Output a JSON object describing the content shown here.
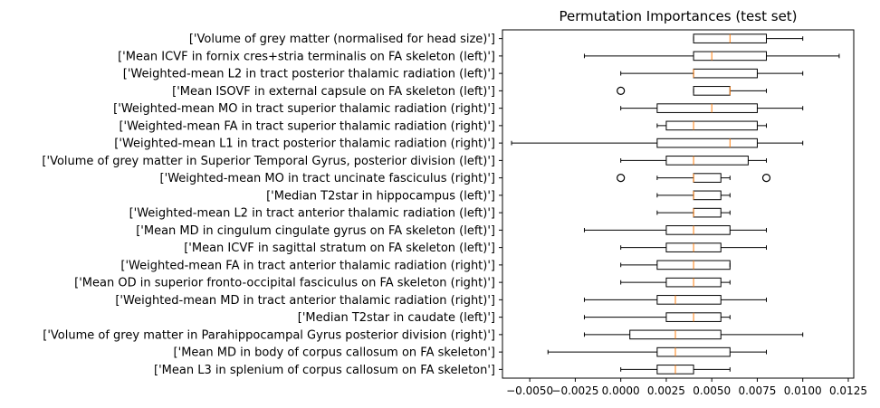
{
  "chart_data": {
    "type": "boxplot",
    "orientation": "horizontal",
    "title": "Permutation Importances (test set)",
    "xlim": [
      -0.0065,
      0.0128
    ],
    "xticks": [
      -0.005,
      -0.0025,
      0.0,
      0.0025,
      0.005,
      0.0075,
      0.01,
      0.0125
    ],
    "xtick_labels": [
      "−0.0050",
      "−0.0025",
      "0.0000",
      "0.0025",
      "0.0050",
      "0.0075",
      "0.0100",
      "0.0125"
    ],
    "categories": [
      "['Volume of grey matter (normalised for head size)']",
      "['Mean ICVF in fornix cres+stria terminalis on FA skeleton (left)']",
      "['Weighted-mean L2 in tract posterior thalamic radiation (left)']",
      "['Mean ISOVF in external capsule on FA skeleton (left)']",
      "['Weighted-mean MO in tract superior thalamic radiation (right)']",
      "['Weighted-mean FA in tract superior thalamic radiation (right)']",
      "['Weighted-mean L1 in tract posterior thalamic radiation (right)']",
      "['Volume of grey matter in Superior Temporal Gyrus, posterior division (left)']",
      "['Weighted-mean MO in tract uncinate fasciculus (right)']",
      "['Median T2star in hippocampus (left)']",
      "['Weighted-mean L2 in tract anterior thalamic radiation (left)']",
      "['Mean MD in cingulum cingulate gyrus on FA skeleton (left)']",
      "['Mean ICVF in sagittal stratum on FA skeleton (left)']",
      "['Weighted-mean FA in tract anterior thalamic radiation (right)']",
      "['Mean OD in superior fronto-occipital fasciculus on FA skeleton (right)']",
      "['Weighted-mean MD in tract anterior thalamic radiation (right)']",
      "['Median T2star in caudate (left)']",
      "['Volume of grey matter in Parahippocampal Gyrus posterior division (right)']",
      "['Mean MD in body of corpus callosum on FA skeleton']",
      "['Mean L3 in splenium of corpus callosum on FA skeleton']"
    ],
    "boxes": [
      {
        "whislo": 0.004,
        "q1": 0.004,
        "med": 0.006,
        "q3": 0.008,
        "whishi": 0.01,
        "fliers": []
      },
      {
        "whislo": -0.002,
        "q1": 0.004,
        "med": 0.005,
        "q3": 0.008,
        "whishi": 0.012,
        "fliers": []
      },
      {
        "whislo": 0.0,
        "q1": 0.004,
        "med": 0.004,
        "q3": 0.0075,
        "whishi": 0.01,
        "fliers": []
      },
      {
        "whislo": 0.004,
        "q1": 0.004,
        "med": 0.006,
        "q3": 0.006,
        "whishi": 0.008,
        "fliers": [
          0.0
        ]
      },
      {
        "whislo": 0.0,
        "q1": 0.002,
        "med": 0.005,
        "q3": 0.0075,
        "whishi": 0.01,
        "fliers": []
      },
      {
        "whislo": 0.002,
        "q1": 0.0025,
        "med": 0.004,
        "q3": 0.0075,
        "whishi": 0.008,
        "fliers": []
      },
      {
        "whislo": -0.006,
        "q1": 0.002,
        "med": 0.006,
        "q3": 0.0075,
        "whishi": 0.01,
        "fliers": []
      },
      {
        "whislo": 0.0,
        "q1": 0.0025,
        "med": 0.004,
        "q3": 0.007,
        "whishi": 0.008,
        "fliers": []
      },
      {
        "whislo": 0.002,
        "q1": 0.004,
        "med": 0.004,
        "q3": 0.0055,
        "whishi": 0.006,
        "fliers": [
          0.0,
          0.008
        ]
      },
      {
        "whislo": 0.002,
        "q1": 0.004,
        "med": 0.004,
        "q3": 0.0055,
        "whishi": 0.006,
        "fliers": []
      },
      {
        "whislo": 0.002,
        "q1": 0.004,
        "med": 0.004,
        "q3": 0.0055,
        "whishi": 0.006,
        "fliers": []
      },
      {
        "whislo": -0.002,
        "q1": 0.0025,
        "med": 0.004,
        "q3": 0.006,
        "whishi": 0.008,
        "fliers": []
      },
      {
        "whislo": 0.0,
        "q1": 0.0025,
        "med": 0.004,
        "q3": 0.0055,
        "whishi": 0.008,
        "fliers": []
      },
      {
        "whislo": 0.0,
        "q1": 0.002,
        "med": 0.004,
        "q3": 0.006,
        "whishi": 0.006,
        "fliers": []
      },
      {
        "whislo": 0.0,
        "q1": 0.0025,
        "med": 0.004,
        "q3": 0.0055,
        "whishi": 0.006,
        "fliers": []
      },
      {
        "whislo": -0.002,
        "q1": 0.002,
        "med": 0.003,
        "q3": 0.0055,
        "whishi": 0.008,
        "fliers": []
      },
      {
        "whislo": -0.002,
        "q1": 0.0025,
        "med": 0.004,
        "q3": 0.0055,
        "whishi": 0.006,
        "fliers": []
      },
      {
        "whislo": -0.002,
        "q1": 0.0005,
        "med": 0.003,
        "q3": 0.0055,
        "whishi": 0.01,
        "fliers": []
      },
      {
        "whislo": -0.004,
        "q1": 0.002,
        "med": 0.003,
        "q3": 0.006,
        "whishi": 0.008,
        "fliers": []
      },
      {
        "whislo": 0.0,
        "q1": 0.002,
        "med": 0.003,
        "q3": 0.004,
        "whishi": 0.006,
        "fliers": []
      }
    ],
    "grid": false,
    "colors": {
      "box": "#000000",
      "median": "#ff7f0e",
      "flier": "#000000"
    }
  }
}
